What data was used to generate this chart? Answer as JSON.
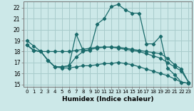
{
  "xlabel": "Humidex (Indice chaleur)",
  "ylabel": "",
  "bg_color": "#cce8e8",
  "grid_color": "#a8cccc",
  "line_color": "#1a6b6b",
  "xlim": [
    -0.5,
    23.5
  ],
  "ylim": [
    14.8,
    22.6
  ],
  "xticks": [
    0,
    1,
    2,
    3,
    4,
    5,
    6,
    7,
    8,
    9,
    10,
    11,
    12,
    13,
    14,
    15,
    16,
    17,
    18,
    19,
    20,
    21,
    22,
    23
  ],
  "yticks": [
    15,
    16,
    17,
    18,
    19,
    20,
    21,
    22
  ],
  "series": [
    {
      "x": [
        0,
        1,
        2,
        3,
        4,
        5,
        6,
        7,
        8,
        9,
        10,
        11,
        12,
        13,
        14,
        15,
        16,
        17,
        18,
        19,
        20,
        21,
        22,
        23
      ],
      "y": [
        19.0,
        18.5,
        18.0,
        17.2,
        16.6,
        16.6,
        16.7,
        19.6,
        18.1,
        18.1,
        20.5,
        21.0,
        22.1,
        22.3,
        21.8,
        21.5,
        21.5,
        18.7,
        18.7,
        19.4,
        16.5,
        15.9,
        15.2,
        15.1
      ]
    },
    {
      "x": [
        0,
        1,
        2,
        3,
        4,
        5,
        6,
        7,
        8,
        9,
        10,
        11,
        12,
        13,
        14,
        15,
        16,
        17,
        18,
        19,
        20,
        21,
        22,
        23
      ],
      "y": [
        18.6,
        18.1,
        18.0,
        18.0,
        18.0,
        18.0,
        18.0,
        18.1,
        18.2,
        18.3,
        18.4,
        18.4,
        18.4,
        18.4,
        18.3,
        18.2,
        18.1,
        18.0,
        17.9,
        17.8,
        17.4,
        16.8,
        16.4,
        15.2
      ]
    },
    {
      "x": [
        0,
        1,
        2,
        3,
        4,
        5,
        6,
        7,
        8,
        9,
        10,
        11,
        12,
        13,
        14,
        15,
        16,
        17,
        18,
        19,
        20,
        21,
        22,
        23
      ],
      "y": [
        18.6,
        18.1,
        18.0,
        17.2,
        16.6,
        16.6,
        16.7,
        17.5,
        18.0,
        18.2,
        18.3,
        18.4,
        18.4,
        18.3,
        18.2,
        18.1,
        18.0,
        17.8,
        17.6,
        17.4,
        17.0,
        16.6,
        16.2,
        15.2
      ]
    },
    {
      "x": [
        0,
        1,
        2,
        3,
        4,
        5,
        6,
        7,
        8,
        9,
        10,
        11,
        12,
        13,
        14,
        15,
        16,
        17,
        18,
        19,
        20,
        21,
        22,
        23
      ],
      "y": [
        18.6,
        18.1,
        18.0,
        17.2,
        16.6,
        16.5,
        16.5,
        16.6,
        16.7,
        16.7,
        16.8,
        16.9,
        16.9,
        17.0,
        16.9,
        16.8,
        16.6,
        16.4,
        16.2,
        16.0,
        15.8,
        15.5,
        15.2,
        15.1
      ]
    }
  ]
}
